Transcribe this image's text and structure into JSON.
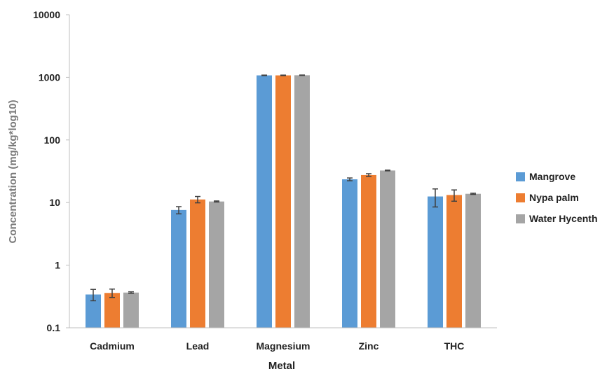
{
  "chart_data": {
    "type": "bar",
    "title": "",
    "xlabel": "Metal",
    "ylabel": "Concentration (mg/kg*log10)",
    "yscale": "log",
    "ylim": [
      0.1,
      10000
    ],
    "yticks": [
      "0.1",
      "1",
      "10",
      "100",
      "1000",
      "10000"
    ],
    "categories": [
      "Cadmium",
      "Lead",
      "Magnesium",
      "Zinc",
      "THC"
    ],
    "legend_position": "right",
    "grid": false,
    "series": [
      {
        "name": "Mangrove",
        "color": "#5b9bd5",
        "values": [
          0.34,
          7.6,
          1075,
          23.5,
          12.5
        ],
        "errors": [
          0.07,
          1.0,
          10,
          1.2,
          4.0
        ]
      },
      {
        "name": "Nypa palm",
        "color": "#ed7d31",
        "values": [
          0.36,
          11.2,
          1075,
          27.5,
          13.2
        ],
        "errors": [
          0.055,
          1.3,
          10,
          1.4,
          2.7
        ]
      },
      {
        "name": "Water Hycenth",
        "color": "#a5a5a5",
        "values": [
          0.365,
          10.4,
          1080,
          32.5,
          13.8
        ],
        "errors": [
          0.01,
          0.2,
          8,
          0.4,
          0.3
        ]
      }
    ]
  }
}
